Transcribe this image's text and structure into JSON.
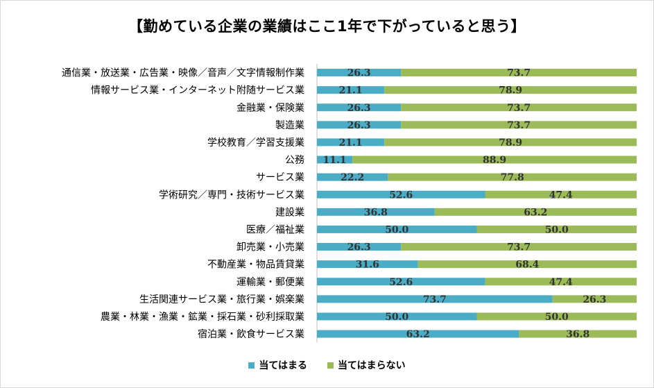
{
  "chart_data": {
    "type": "bar",
    "orientation": "horizontal",
    "stacked": "percent",
    "title": "【勤めている企業の業績はここ1年で下がっていると思う】",
    "categories": [
      "通信業・放送業・広告業・映像／音声／文字情報制作業",
      "情報サービス業・インターネット附随サービス業",
      "金融業・保険業",
      "製造業",
      "学校教育／学習支援業",
      "公務",
      "サービス業",
      "学術研究／専門・技術サービス業",
      "建設業",
      "医療／福祉業",
      "卸売業・小売業",
      "不動産業・物品賃貸業",
      "運輸業・郵便業",
      "生活関連サービス業・旅行業・娯楽業",
      "農業・林業・漁業・鉱業・採石業・砂利採取業",
      "宿泊業・飲食サービス業"
    ],
    "series": [
      {
        "name": "当てはまる",
        "color": "#4bacc6",
        "values": [
          26.3,
          21.1,
          26.3,
          26.3,
          21.1,
          11.1,
          22.2,
          52.6,
          36.8,
          50.0,
          26.3,
          31.6,
          52.6,
          73.7,
          50.0,
          63.2
        ]
      },
      {
        "name": "当てはまらない",
        "color": "#9bbb59",
        "values": [
          73.7,
          78.9,
          73.7,
          73.7,
          78.9,
          88.9,
          77.8,
          47.4,
          63.2,
          50.0,
          73.7,
          68.4,
          47.4,
          26.3,
          50.0,
          36.8
        ]
      }
    ],
    "xlim": [
      0,
      100
    ],
    "legend": "bottom",
    "grid": false
  }
}
